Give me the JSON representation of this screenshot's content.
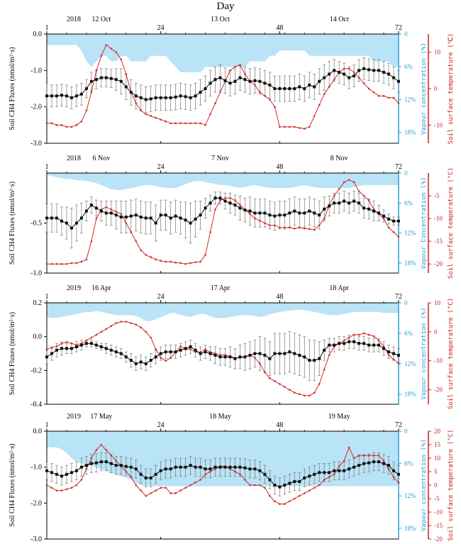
{
  "figure": {
    "title": "Day",
    "x_ticks": [
      "1",
      "24",
      "48",
      "72"
    ]
  },
  "chart_data": [
    {
      "type": "line",
      "year": "2018",
      "day_labels": [
        "12 Oct",
        "13 Oct",
        "14 Oct"
      ],
      "ylabel_left": "Soil CH4 Fluxes (nmol/m²·s)",
      "ylabel_vapour": "Vapour concentration (%)",
      "ylabel_temp": "Soil surface temperature (℃)",
      "y_ticks": [
        "0.0",
        "-1.0",
        "-2.0",
        "-3.0"
      ],
      "ylim": [
        -3.0,
        0.0
      ],
      "vapour_ticks": [
        "0",
        "6%",
        "12%",
        "18%"
      ],
      "vapour_lim": [
        0,
        20
      ],
      "temp_ticks": [
        "10",
        "0",
        "-10"
      ],
      "temp_lim": [
        -15,
        15
      ],
      "flux": [
        -1.7,
        -1.7,
        -1.7,
        -1.68,
        -1.7,
        -1.75,
        -1.7,
        -1.65,
        -1.5,
        -1.3,
        -1.25,
        -1.2,
        -1.2,
        -1.22,
        -1.25,
        -1.3,
        -1.45,
        -1.6,
        -1.7,
        -1.75,
        -1.8,
        -1.78,
        -1.75,
        -1.75,
        -1.75,
        -1.75,
        -1.73,
        -1.7,
        -1.72,
        -1.75,
        -1.7,
        -1.6,
        -1.5,
        -1.35,
        -1.25,
        -1.2,
        -1.28,
        -1.35,
        -1.3,
        -1.2,
        -1.25,
        -1.3,
        -1.28,
        -1.3,
        -1.35,
        -1.4,
        -1.5,
        -1.5,
        -1.5,
        -1.5,
        -1.5,
        -1.45,
        -1.5,
        -1.4,
        -1.45,
        -1.3,
        -1.2,
        -1.1,
        -1.0,
        -1.05,
        -1.1,
        -1.2,
        -1.15,
        -1.0,
        -0.95,
        -0.98,
        -1.0,
        -1.0,
        -1.05,
        -1.1,
        -1.2,
        -1.3
      ],
      "flux_err": [
        0.35,
        0.3,
        0.3,
        0.3,
        0.3,
        0.3,
        0.3,
        0.3,
        0.25,
        0.25,
        0.25,
        0.25,
        0.25,
        0.25,
        0.3,
        0.35,
        0.35,
        0.35,
        0.35,
        0.35,
        0.35,
        0.35,
        0.35,
        0.35,
        0.35,
        0.35,
        0.35,
        0.35,
        0.35,
        0.35,
        0.35,
        0.35,
        0.35,
        0.35,
        0.35,
        0.35,
        0.35,
        0.35,
        0.35,
        0.35,
        0.35,
        0.35,
        0.35,
        0.35,
        0.35,
        0.35,
        0.35,
        0.35,
        0.35,
        0.35,
        0.35,
        0.35,
        0.35,
        0.35,
        0.35,
        0.35,
        0.35,
        0.35,
        0.3,
        0.3,
        0.3,
        0.3,
        0.3,
        0.3,
        0.3,
        0.3,
        0.3,
        0.3,
        0.3,
        0.3,
        0.3,
        0.3
      ],
      "temp": [
        -9.5,
        -9.5,
        -10,
        -10,
        -10.5,
        -10.5,
        -10,
        -9,
        -6,
        -1,
        5,
        9,
        12,
        11,
        10,
        8,
        4,
        -1,
        -4,
        -6,
        -7,
        -7.5,
        -8,
        -8.5,
        -9,
        -9.5,
        -9.5,
        -9.5,
        -9.5,
        -9.5,
        -9.5,
        -9.5,
        -10,
        -7,
        -4,
        -1,
        2,
        5,
        6,
        6.5,
        4,
        2,
        1,
        -1,
        -2,
        -3,
        -5,
        -10.5,
        -10.5,
        -10.5,
        -10.5,
        -10.8,
        -11,
        -10.5,
        -7.5,
        -4.5,
        -1.5,
        0.5,
        2.5,
        4.5,
        5.5,
        5.5,
        4.5,
        3,
        1.5,
        0,
        -1,
        -2,
        -2,
        -2.5,
        -2.5,
        -4
      ],
      "vapour": [
        2,
        2,
        2,
        2,
        2,
        2,
        2,
        3,
        5,
        6,
        5,
        4,
        4,
        5,
        5,
        4,
        4,
        5,
        5,
        5,
        5,
        4,
        4,
        4,
        4,
        5,
        6,
        7,
        7,
        7,
        7,
        7,
        6,
        6,
        6,
        6,
        6,
        6,
        6,
        6,
        6,
        5,
        5,
        5,
        5,
        4,
        4,
        3,
        3,
        3,
        3,
        3,
        3,
        4,
        4,
        4,
        4,
        4,
        4,
        4,
        4,
        4,
        4,
        4,
        4,
        4,
        5,
        5,
        5,
        5,
        6,
        6
      ]
    },
    {
      "type": "line",
      "year": "2018",
      "day_labels": [
        "6 Nov",
        "7 Nov",
        "8 Nov"
      ],
      "ylabel_left": "Soil CH4 Fluxes (nmol/m²·s)",
      "ylabel_vapour": "Vapour Concentration (%)",
      "ylabel_temp": "Soil surface temperature (°C)",
      "y_ticks": [
        "-0.5",
        "-1.0"
      ],
      "ylim": [
        -1.0,
        0.0
      ],
      "vapour_ticks": [
        "0",
        "6%",
        "12%",
        "18%"
      ],
      "vapour_lim": [
        0,
        20
      ],
      "temp_ticks": [
        "-5",
        "-10",
        "-15",
        "-20"
      ],
      "temp_lim": [
        -22,
        0
      ],
      "flux": [
        -0.45,
        -0.45,
        -0.45,
        -0.48,
        -0.5,
        -0.55,
        -0.5,
        -0.45,
        -0.38,
        -0.32,
        -0.35,
        -0.38,
        -0.4,
        -0.4,
        -0.42,
        -0.44,
        -0.44,
        -0.43,
        -0.42,
        -0.44,
        -0.45,
        -0.45,
        -0.5,
        -0.42,
        -0.42,
        -0.45,
        -0.43,
        -0.45,
        -0.47,
        -0.5,
        -0.46,
        -0.42,
        -0.35,
        -0.3,
        -0.25,
        -0.25,
        -0.28,
        -0.3,
        -0.32,
        -0.35,
        -0.37,
        -0.38,
        -0.4,
        -0.4,
        -0.4,
        -0.42,
        -0.43,
        -0.42,
        -0.42,
        -0.4,
        -0.38,
        -0.4,
        -0.4,
        -0.38,
        -0.4,
        -0.42,
        -0.36,
        -0.33,
        -0.3,
        -0.3,
        -0.28,
        -0.3,
        -0.28,
        -0.3,
        -0.35,
        -0.36,
        -0.38,
        -0.4,
        -0.43,
        -0.46,
        -0.48,
        -0.48
      ],
      "flux_err": [
        0.14,
        0.14,
        0.14,
        0.14,
        0.16,
        0.2,
        0.18,
        0.15,
        0.1,
        0.08,
        0.08,
        0.1,
        0.12,
        0.12,
        0.14,
        0.16,
        0.16,
        0.16,
        0.16,
        0.16,
        0.16,
        0.16,
        0.18,
        0.15,
        0.15,
        0.16,
        0.16,
        0.16,
        0.18,
        0.2,
        0.18,
        0.14,
        0.1,
        0.08,
        0.06,
        0.06,
        0.08,
        0.1,
        0.1,
        0.12,
        0.12,
        0.14,
        0.14,
        0.14,
        0.14,
        0.14,
        0.14,
        0.14,
        0.14,
        0.14,
        0.14,
        0.14,
        0.14,
        0.14,
        0.14,
        0.14,
        0.12,
        0.1,
        0.1,
        0.1,
        0.1,
        0.1,
        0.1,
        0.1,
        0.1,
        0.1,
        0.1,
        0.08,
        0.06,
        0.05,
        0.04,
        0.04
      ],
      "temp": [
        -20,
        -20,
        -20,
        -20,
        -20,
        -19.8,
        -19.8,
        -19.5,
        -19,
        -15,
        -10,
        -8,
        -7.5,
        -8,
        -8.5,
        -9,
        -11,
        -13,
        -15,
        -17,
        -18,
        -18.5,
        -19,
        -19.3,
        -19.5,
        -19.5,
        -19.7,
        -19.8,
        -20,
        -19.8,
        -19.6,
        -19.5,
        -18,
        -13,
        -8,
        -6,
        -5.5,
        -5.5,
        -6,
        -7,
        -8,
        -9,
        -10,
        -10.5,
        -11,
        -11.5,
        -11.5,
        -12,
        -12,
        -12,
        -12.2,
        -12,
        -12.2,
        -12.3,
        -12.5,
        -11.5,
        -10,
        -7,
        -5,
        -3.5,
        -2,
        -1.5,
        -2,
        -4,
        -5,
        -6,
        -8,
        -9,
        -10,
        -12,
        -13,
        -14
      ],
      "vapour": [
        0.4,
        0.6,
        0.8,
        1,
        1.2,
        1.2,
        1.4,
        1.5,
        1.6,
        1.8,
        2,
        2.4,
        2.8,
        3.2,
        3.4,
        3.4,
        3.2,
        3,
        2.8,
        2.6,
        2.4,
        2.4,
        2.6,
        2.8,
        3,
        3,
        3,
        2.6,
        2.2,
        1.8,
        1.6,
        1.6,
        1.8,
        2,
        2.2,
        2.4,
        2.4,
        2.6,
        2.8,
        3,
        2.8,
        2.6,
        2.4,
        2.6,
        2.8,
        3,
        3,
        3,
        3,
        3,
        2.8,
        2.6,
        2.4,
        2.6,
        2.8,
        3,
        3,
        3,
        3,
        3,
        3,
        3,
        2.8,
        2.6,
        2.4,
        2.4,
        2.4,
        2.4,
        2.4,
        2.4,
        2.4,
        2.4
      ]
    },
    {
      "type": "line",
      "year": "2019",
      "day_labels": [
        "16 Apr",
        "17 Apr",
        "18 Apr"
      ],
      "ylabel_left": "Soil CH4 Fluxes (nmol/m²·s)",
      "ylabel_vapour": "Vapour concentration (%)",
      "ylabel_temp": "Soil surface temperature (°C)",
      "y_ticks": [
        "0.2",
        "0.0",
        "-0.2",
        "-0.4"
      ],
      "ylim": [
        -0.4,
        0.2
      ],
      "vapour_ticks": [
        "0",
        "6%",
        "12%",
        "18%"
      ],
      "vapour_lim": [
        0,
        20
      ],
      "temp_ticks": [
        "10",
        "0",
        "-10",
        "-20"
      ],
      "temp_lim": [
        -25,
        10
      ],
      "flux": [
        -0.12,
        -0.1,
        -0.08,
        -0.07,
        -0.07,
        -0.07,
        -0.06,
        -0.05,
        -0.04,
        -0.04,
        -0.05,
        -0.06,
        -0.07,
        -0.08,
        -0.09,
        -0.1,
        -0.12,
        -0.14,
        -0.16,
        -0.15,
        -0.16,
        -0.14,
        -0.12,
        -0.1,
        -0.09,
        -0.09,
        -0.09,
        -0.08,
        -0.07,
        -0.06,
        -0.08,
        -0.1,
        -0.09,
        -0.1,
        -0.11,
        -0.12,
        -0.12,
        -0.12,
        -0.13,
        -0.12,
        -0.12,
        -0.11,
        -0.1,
        -0.1,
        -0.11,
        -0.13,
        -0.1,
        -0.1,
        -0.1,
        -0.09,
        -0.1,
        -0.11,
        -0.12,
        -0.14,
        -0.14,
        -0.13,
        -0.08,
        -0.05,
        -0.05,
        -0.04,
        -0.04,
        -0.03,
        -0.03,
        -0.04,
        -0.04,
        -0.05,
        -0.05,
        -0.05,
        -0.07,
        -0.09,
        -0.1,
        -0.11
      ],
      "flux_err": [
        0.04,
        0.04,
        0.04,
        0.04,
        0.03,
        0.03,
        0.03,
        0.03,
        0.02,
        0.02,
        0.02,
        0.02,
        0.03,
        0.03,
        0.03,
        0.03,
        0.03,
        0.04,
        0.04,
        0.04,
        0.04,
        0.04,
        0.04,
        0.04,
        0.04,
        0.04,
        0.04,
        0.04,
        0.04,
        0.04,
        0.04,
        0.04,
        0.04,
        0.04,
        0.05,
        0.05,
        0.05,
        0.06,
        0.06,
        0.07,
        0.08,
        0.08,
        0.08,
        0.1,
        0.1,
        0.1,
        0.12,
        0.12,
        0.12,
        0.12,
        0.12,
        0.12,
        0.12,
        0.12,
        0.12,
        0.1,
        0.06,
        0.04,
        0.04,
        0.04,
        0.04,
        0.04,
        0.04,
        0.04,
        0.04,
        0.04,
        0.04,
        0.04,
        0.04,
        0.04,
        0.04,
        0.04
      ],
      "temp": [
        -6,
        -5.5,
        -5,
        -4,
        -3.5,
        -4,
        -4.5,
        -4,
        -3,
        -2,
        -1,
        0,
        1,
        2,
        3,
        3.5,
        3.5,
        3,
        2.5,
        1.5,
        0,
        -2,
        -6,
        -9,
        -10,
        -9,
        -7,
        -5,
        -6,
        -6,
        -7,
        -7,
        -6,
        -7,
        -7.5,
        -8,
        -8,
        -8.5,
        -9,
        -9,
        -8.5,
        -8,
        -9,
        -11,
        -14,
        -16,
        -17,
        -18,
        -19,
        -20,
        -21,
        -21.5,
        -22,
        -22,
        -21,
        -18,
        -13,
        -8,
        -5,
        -4,
        -3,
        -2,
        -1,
        -1,
        -0.5,
        -1,
        -1.5,
        -3,
        -5,
        -8,
        -9.5,
        -11
      ],
      "vapour": [
        2.8,
        3,
        3,
        2.8,
        2.6,
        2.4,
        2.2,
        2,
        1.8,
        1.8,
        1.6,
        1.8,
        2,
        2.2,
        2.4,
        2.4,
        2.4,
        2.4,
        2.6,
        3,
        3.6,
        3.6,
        3.2,
        2.8,
        2.4,
        2,
        2,
        2.4,
        2.6,
        2.8,
        2.4,
        2.2,
        2.2,
        2.6,
        3,
        3,
        3,
        2.8,
        2.6,
        2.4,
        2.4,
        2.4,
        2.6,
        2.8,
        2.6,
        2.2,
        2,
        1.8,
        1.6,
        1.6,
        1.4,
        1.4,
        1.4,
        1.6,
        1.8,
        2,
        2.2,
        2.4,
        2.4,
        2.4,
        2.2,
        2,
        1.8,
        1.8,
        1.8,
        1.8,
        1.8,
        1.8,
        2,
        2,
        2,
        2
      ]
    },
    {
      "type": "line",
      "year": "2019",
      "day_labels": [
        "17 May",
        "18 May",
        "19 May"
      ],
      "ylabel_left": "Soil CH4 Fluxes (nmol/m²·s)",
      "ylabel_vapour": "Vapour concentration (%)",
      "ylabel_temp": "Soil surface temperature (°C)",
      "y_ticks": [
        "0.0",
        "-1.0",
        "-2.0",
        "-3.0"
      ],
      "ylim": [
        -3.0,
        0.0
      ],
      "vapour_ticks": [
        "0",
        "6%",
        "12%",
        "18%"
      ],
      "vapour_lim": [
        0,
        20
      ],
      "temp_ticks": [
        "20",
        "15",
        "10",
        "5",
        "0",
        "-5",
        "-10",
        "-15",
        "-20"
      ],
      "temp_lim": [
        -20,
        20
      ],
      "flux": [
        -1.1,
        -1.15,
        -1.2,
        -1.25,
        -1.2,
        -1.15,
        -1.1,
        -1.0,
        -0.95,
        -0.9,
        -0.88,
        -0.85,
        -0.85,
        -0.9,
        -0.95,
        -0.95,
        -0.98,
        -1.0,
        -1.05,
        -1.2,
        -1.3,
        -1.3,
        -1.2,
        -1.1,
        -1.05,
        -1.05,
        -1.0,
        -1.0,
        -1.0,
        -0.95,
        -1.0,
        -1.0,
        -1.05,
        -1.05,
        -1.0,
        -1.0,
        -1.0,
        -1.0,
        -1.0,
        -1.0,
        -1.02,
        -1.05,
        -1.05,
        -1.1,
        -1.2,
        -1.35,
        -1.5,
        -1.55,
        -1.5,
        -1.45,
        -1.4,
        -1.4,
        -1.3,
        -1.25,
        -1.2,
        -1.15,
        -1.15,
        -1.15,
        -1.1,
        -1.1,
        -1.1,
        -1.05,
        -1.0,
        -0.95,
        -0.9,
        -0.88,
        -0.85,
        -0.85,
        -0.9,
        -0.95,
        -1.1,
        -1.2
      ],
      "flux_err": [
        0.25,
        0.25,
        0.25,
        0.25,
        0.25,
        0.25,
        0.25,
        0.25,
        0.25,
        0.25,
        0.25,
        0.25,
        0.25,
        0.25,
        0.25,
        0.25,
        0.25,
        0.25,
        0.25,
        0.25,
        0.25,
        0.25,
        0.25,
        0.25,
        0.25,
        0.25,
        0.25,
        0.25,
        0.25,
        0.25,
        0.25,
        0.25,
        0.25,
        0.25,
        0.25,
        0.25,
        0.25,
        0.25,
        0.25,
        0.25,
        0.25,
        0.25,
        0.25,
        0.25,
        0.25,
        0.25,
        0.25,
        0.25,
        0.25,
        0.25,
        0.25,
        0.25,
        0.25,
        0.25,
        0.25,
        0.25,
        0.25,
        0.25,
        0.25,
        0.25,
        0.25,
        0.25,
        0.25,
        0.25,
        0.25,
        0.25,
        0.25,
        0.25,
        0.25,
        0.25,
        0.25,
        0.25
      ],
      "temp": [
        0,
        -1,
        -2,
        -2,
        -1.5,
        -1,
        0,
        2,
        6,
        10,
        13,
        15,
        13,
        11,
        9,
        7,
        5,
        3,
        0,
        -2,
        -4,
        -3,
        -2,
        -1,
        -1,
        -3,
        -3,
        -2,
        -1,
        0,
        1,
        2,
        4,
        5,
        6,
        7,
        7,
        6,
        5,
        4,
        2,
        0,
        0,
        0,
        -1,
        -4,
        -6,
        -7,
        -7,
        -6,
        -5,
        -4,
        -3,
        -2,
        -1,
        0,
        2,
        3,
        4,
        7,
        9,
        14,
        10,
        11,
        11,
        11,
        11,
        11,
        9,
        6,
        3,
        1
      ],
      "vapour": [
        3,
        3,
        3,
        3.4,
        4,
        5,
        5.6,
        6,
        6.6,
        6.2,
        6.8,
        7,
        7.4,
        7.8,
        8,
        8.4,
        8.6,
        9,
        9.6,
        10,
        10.2,
        10.2,
        10.2,
        10.2,
        10.2,
        10.2,
        10.2,
        10.2,
        10.2,
        10.2,
        10.2,
        10.2,
        10.2,
        10.2,
        10.2,
        10.2,
        10.2,
        10.2,
        10.2,
        10.2,
        10.2,
        10.2,
        10.2,
        10.2,
        10.2,
        10.2,
        10.2,
        10.2,
        10.2,
        10.2,
        10.2,
        10.2,
        10.2,
        10.2,
        10.2,
        10.2,
        10.2,
        10.2,
        10.2,
        10.2,
        10.2,
        10.2,
        10.2,
        10.2,
        10.2,
        10.2,
        10.2,
        10.2,
        10.2,
        10.2,
        10.2,
        10.2
      ]
    }
  ],
  "colors": {
    "flux": "#111111",
    "temp": "#d42a2a",
    "vapour": "#a8dcf4",
    "vapour_axis": "#2a9fd6",
    "temp_axis": "#cc1f1f"
  }
}
